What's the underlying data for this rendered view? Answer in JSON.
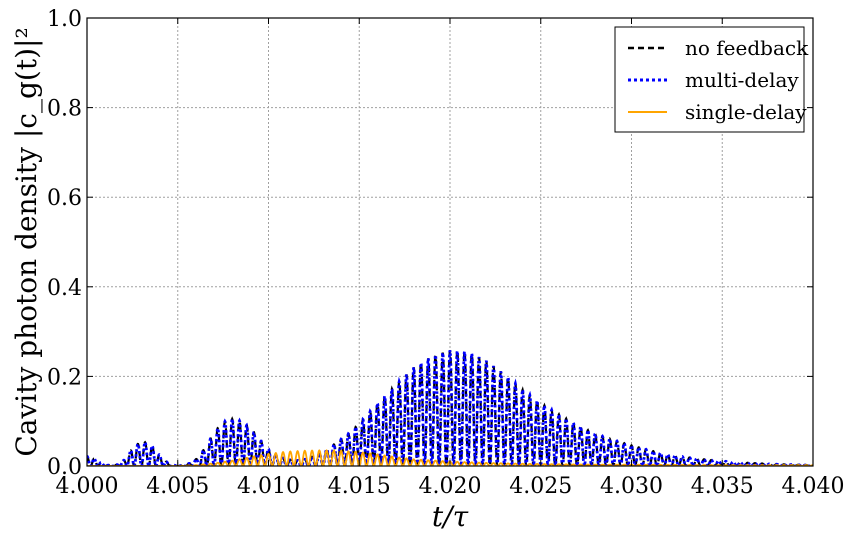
{
  "chart_data": {
    "type": "line",
    "xlabel": "t/τ",
    "ylabel": "Cavity photon density |c_g(t)|²",
    "xlim": [
      4.0,
      4.04
    ],
    "ylim": [
      0.0,
      1.0
    ],
    "x_ticks": [
      "4.000",
      "4.005",
      "4.010",
      "4.015",
      "4.020",
      "4.025",
      "4.030",
      "4.035",
      "4.040"
    ],
    "y_ticks": [
      "0.0",
      "0.2",
      "0.4",
      "0.6",
      "0.8",
      "1.0"
    ],
    "grid": true,
    "legend_position": "top-right",
    "series": [
      {
        "name": "no feedback",
        "style": "dashed",
        "color": "#000000",
        "oscillation_period": 0.0004,
        "envelope_x": [
          4.0,
          4.0005,
          4.001,
          4.0015,
          4.002,
          4.0025,
          4.003,
          4.0035,
          4.004,
          4.0045,
          4.005,
          4.0055,
          4.006,
          4.0065,
          4.007,
          4.0075,
          4.008,
          4.0085,
          4.009,
          4.0095,
          4.01,
          4.0105,
          4.011,
          4.0115,
          4.012,
          4.0125,
          4.013,
          4.0135,
          4.014,
          4.0145,
          4.015,
          4.016,
          4.017,
          4.018,
          4.019,
          4.02,
          4.021,
          4.022,
          4.023,
          4.024,
          4.025,
          4.026,
          4.027,
          4.028,
          4.029,
          4.03,
          4.031,
          4.032,
          4.033,
          4.034,
          4.035,
          4.036,
          4.037,
          4.038,
          4.039,
          4.04
        ],
        "envelope_y": [
          0.022,
          0.015,
          0.003,
          0.0,
          0.012,
          0.04,
          0.055,
          0.05,
          0.025,
          0.005,
          0.0,
          0.003,
          0.015,
          0.04,
          0.075,
          0.098,
          0.105,
          0.1,
          0.085,
          0.06,
          0.038,
          0.022,
          0.015,
          0.012,
          0.015,
          0.022,
          0.032,
          0.045,
          0.06,
          0.075,
          0.095,
          0.14,
          0.18,
          0.22,
          0.245,
          0.258,
          0.255,
          0.235,
          0.205,
          0.17,
          0.14,
          0.115,
          0.092,
          0.072,
          0.058,
          0.046,
          0.035,
          0.026,
          0.02,
          0.015,
          0.011,
          0.008,
          0.006,
          0.004,
          0.003,
          0.002
        ]
      },
      {
        "name": "multi-delay",
        "style": "dotted",
        "color": "#0000ff",
        "oscillation_period": 0.0004,
        "envelope_x": [
          4.0,
          4.0005,
          4.001,
          4.0015,
          4.002,
          4.0025,
          4.003,
          4.0035,
          4.004,
          4.0045,
          4.005,
          4.0055,
          4.006,
          4.0065,
          4.007,
          4.0075,
          4.008,
          4.0085,
          4.009,
          4.0095,
          4.01,
          4.0105,
          4.011,
          4.0115,
          4.012,
          4.0125,
          4.013,
          4.0135,
          4.014,
          4.0145,
          4.015,
          4.016,
          4.017,
          4.018,
          4.019,
          4.02,
          4.021,
          4.022,
          4.023,
          4.024,
          4.025,
          4.026,
          4.027,
          4.028,
          4.029,
          4.03,
          4.031,
          4.032,
          4.033,
          4.034,
          4.035,
          4.036,
          4.037,
          4.038,
          4.039,
          4.04
        ],
        "envelope_y": [
          0.022,
          0.015,
          0.003,
          0.0,
          0.012,
          0.04,
          0.055,
          0.05,
          0.025,
          0.005,
          0.0,
          0.003,
          0.015,
          0.04,
          0.075,
          0.098,
          0.105,
          0.1,
          0.085,
          0.06,
          0.038,
          0.022,
          0.015,
          0.012,
          0.015,
          0.022,
          0.032,
          0.045,
          0.06,
          0.075,
          0.095,
          0.14,
          0.18,
          0.22,
          0.245,
          0.258,
          0.255,
          0.235,
          0.205,
          0.17,
          0.14,
          0.115,
          0.092,
          0.072,
          0.058,
          0.046,
          0.035,
          0.026,
          0.02,
          0.015,
          0.011,
          0.008,
          0.006,
          0.004,
          0.003,
          0.002
        ]
      },
      {
        "name": "single-delay",
        "style": "solid",
        "color": "#ffa500",
        "oscillation_period": 0.0004,
        "envelope_x": [
          4.0,
          4.005,
          4.006,
          4.007,
          4.008,
          4.009,
          4.01,
          4.011,
          4.012,
          4.013,
          4.014,
          4.015,
          4.016,
          4.017,
          4.018,
          4.02,
          4.022,
          4.024,
          4.026,
          4.028,
          4.03,
          4.035,
          4.04
        ],
        "envelope_y": [
          0.0,
          0.0,
          0.002,
          0.006,
          0.012,
          0.02,
          0.027,
          0.032,
          0.034,
          0.035,
          0.034,
          0.031,
          0.026,
          0.02,
          0.015,
          0.01,
          0.007,
          0.005,
          0.004,
          0.003,
          0.003,
          0.002,
          0.002
        ]
      }
    ]
  }
}
